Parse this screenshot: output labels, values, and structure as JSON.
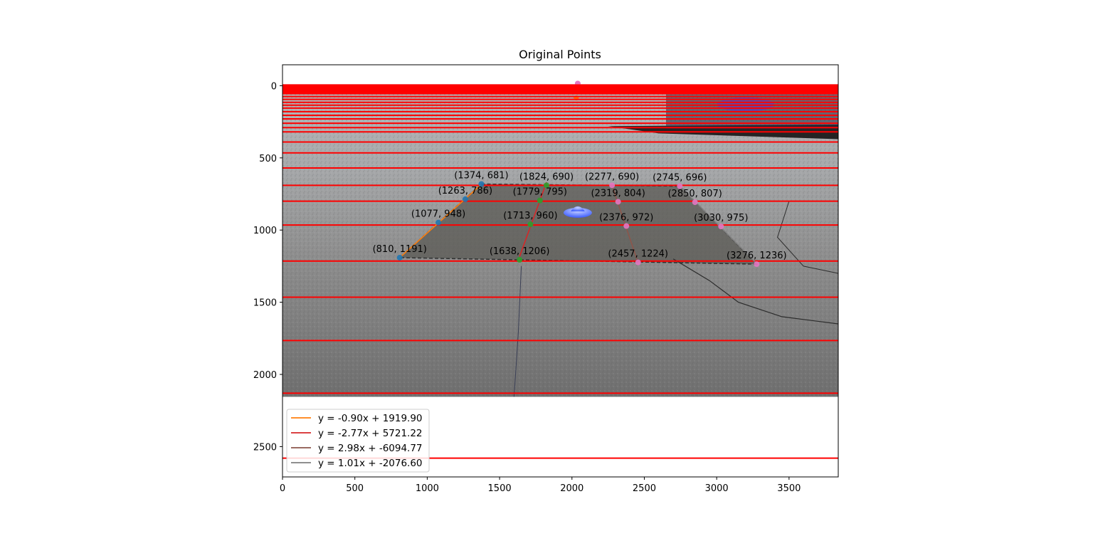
{
  "chart_data": {
    "type": "scatter",
    "title": "Original Points",
    "xlabel": "",
    "ylabel": "",
    "xlim": [
      0,
      3840
    ],
    "ylim": [
      2710,
      -145
    ],
    "y_inverted": true,
    "background": "road photograph with red horizontal guide lines",
    "image_extent": {
      "x": [
        0,
        3840
      ],
      "y": [
        -10,
        2155
      ]
    },
    "x_ticks": [
      0,
      500,
      1000,
      1500,
      2000,
      2500,
      3000,
      3500
    ],
    "y_ticks": [
      0,
      500,
      1000,
      1500,
      2000,
      2500
    ],
    "horizontal_lines": {
      "color": "#ff0000",
      "y_values": [
        10,
        30,
        55,
        75,
        95,
        115,
        135,
        155,
        180,
        205,
        230,
        260,
        290,
        320,
        390,
        465,
        570,
        690,
        800,
        965,
        1215,
        1465,
        1765,
        2130,
        2580
      ]
    },
    "points": [
      {
        "x": 1374,
        "y": 681,
        "label": "(1374, 681)"
      },
      {
        "x": 1824,
        "y": 690,
        "label": "(1824, 690)"
      },
      {
        "x": 2277,
        "y": 690,
        "label": "(2277, 690)"
      },
      {
        "x": 2745,
        "y": 696,
        "label": "(2745, 696)"
      },
      {
        "x": 1263,
        "y": 786,
        "label": "(1263, 786)"
      },
      {
        "x": 1779,
        "y": 795,
        "label": "(1779, 795)"
      },
      {
        "x": 2319,
        "y": 804,
        "label": "(2319, 804)"
      },
      {
        "x": 2850,
        "y": 807,
        "label": "(2850, 807)"
      },
      {
        "x": 1077,
        "y": 948,
        "label": "(1077, 948)"
      },
      {
        "x": 1713,
        "y": 960,
        "label": "(1713, 960)"
      },
      {
        "x": 2376,
        "y": 972,
        "label": "(2376, 972)"
      },
      {
        "x": 3030,
        "y": 975,
        "label": "(3030, 975)"
      },
      {
        "x": 810,
        "y": 1191,
        "label": "(810, 1191)"
      },
      {
        "x": 1638,
        "y": 1206,
        "label": "(1638, 1206)"
      },
      {
        "x": 2457,
        "y": 1224,
        "label": "(2457, 1224)"
      },
      {
        "x": 3276,
        "y": 1236,
        "label": "(3276, 1236)"
      }
    ],
    "series": [
      {
        "name": "y = -0.90x + 1919.90",
        "color": "#ff7f0e",
        "slope": -0.9,
        "intercept": 1919.9,
        "x_range": [
          810,
          1374
        ]
      },
      {
        "name": "y = -2.77x + 5721.22",
        "color": "#d62728",
        "slope": -2.77,
        "intercept": 5721.22,
        "x_range": [
          1638,
          1824
        ]
      },
      {
        "name": "y = 2.98x + -6094.77",
        "color": "#8c564b",
        "slope": 2.98,
        "intercept": -6094.77,
        "x_range": [
          2277,
          2457
        ]
      },
      {
        "name": "y = 1.01x + -2076.60",
        "color": "#7f7f7f",
        "slope": 1.01,
        "intercept": -2076.6,
        "x_range": [
          2745,
          3276
        ]
      }
    ],
    "legend": "lower-left",
    "grid": false
  }
}
